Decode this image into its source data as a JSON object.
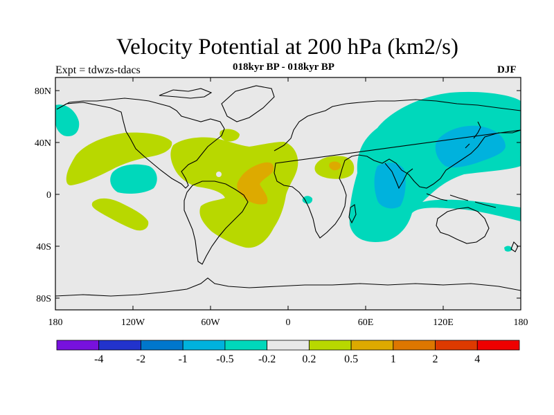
{
  "header": {
    "title": "Velocity Potential at 200 hPa (km2/s)",
    "subtitle": "018kyr BP - 018kyr BP",
    "left_label": "Expt = tdwzs-tdacs",
    "season": "DJF"
  },
  "axes": {
    "lat_ticks": [
      "80N",
      "40N",
      "0",
      "40S",
      "80S"
    ],
    "lon_ticks": [
      "180",
      "120W",
      "60W",
      "0",
      "60E",
      "120E",
      "180"
    ]
  },
  "colorbar": {
    "colors": [
      "#7711dd",
      "#2233cc",
      "#0077cc",
      "#00b2dd",
      "#00d8bb",
      "#e8e8e8",
      "#b8d800",
      "#ddaa00",
      "#dd7700",
      "#dd3a00",
      "#ee0000"
    ],
    "labels": [
      "-4",
      "-2",
      "-1",
      "-0.5",
      "-0.2",
      "0.2",
      "0.5",
      "1",
      "2",
      "4"
    ]
  },
  "style": {
    "background": "#e8e8e8",
    "neg_fill": "#00d8bb",
    "neg_strong_fill": "#00b2dd",
    "pos_fill": "#b8d800",
    "pos_strong_fill": "#ddaa00"
  }
}
